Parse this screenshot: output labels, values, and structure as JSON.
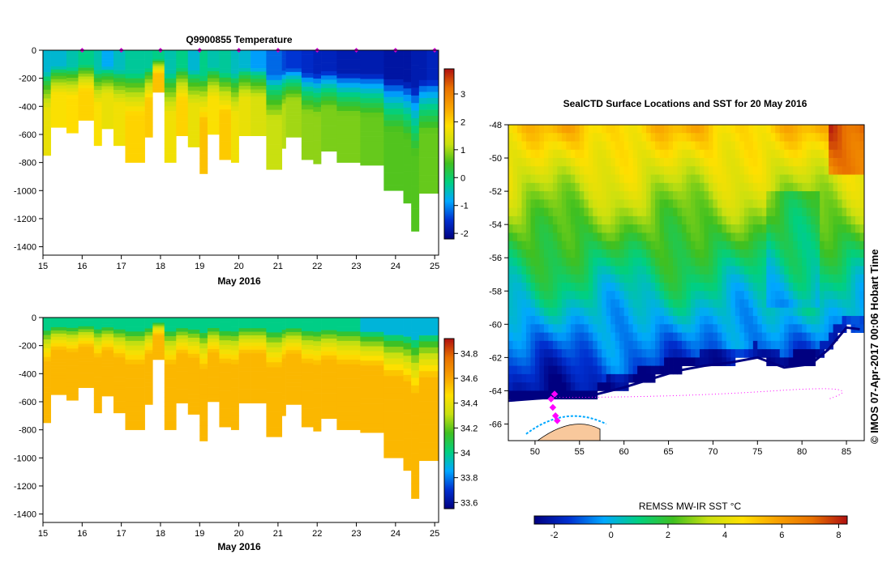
{
  "chart_data": [
    {
      "type": "heatmap",
      "name": "temperature-section",
      "title": "Q9900855  Temperature",
      "xlabel": "May 2016",
      "ylabel": "",
      "x_ticks": [
        15,
        16,
        17,
        18,
        19,
        20,
        21,
        22,
        23,
        24,
        25
      ],
      "xlim": [
        15,
        25.1
      ],
      "y_ticks": [
        0,
        -200,
        -400,
        -600,
        -800,
        -1000,
        -1200,
        -1400
      ],
      "ylim": [
        -1460,
        0
      ],
      "colorbar_ticks": [
        3,
        2,
        1,
        0,
        -1,
        -2
      ],
      "colorbar_range": [
        -2.2,
        3.9
      ],
      "profile_markers_day": [
        16,
        17,
        18,
        19,
        20,
        21,
        22,
        23,
        24,
        25
      ],
      "profile_columns": [
        {
          "x0": 15.0,
          "x1": 15.2,
          "depth": 750,
          "surface": -0.6,
          "deep": 1.6
        },
        {
          "x0": 15.2,
          "x1": 15.6,
          "depth": 550,
          "surface": -0.6,
          "deep": 1.8
        },
        {
          "x0": 15.6,
          "x1": 15.9,
          "depth": 590,
          "surface": -0.4,
          "deep": 1.9
        },
        {
          "x0": 15.9,
          "x1": 16.3,
          "depth": 500,
          "surface": -0.2,
          "deep": 2.0
        },
        {
          "x0": 16.3,
          "x1": 16.5,
          "depth": 680,
          "surface": -0.4,
          "deep": 1.8
        },
        {
          "x0": 16.5,
          "x1": 16.8,
          "depth": 560,
          "surface": -0.8,
          "deep": 1.6
        },
        {
          "x0": 16.8,
          "x1": 17.1,
          "depth": 680,
          "surface": -0.5,
          "deep": 1.7
        },
        {
          "x0": 17.1,
          "x1": 17.6,
          "depth": 800,
          "surface": -0.3,
          "deep": 2.0
        },
        {
          "x0": 17.6,
          "x1": 17.8,
          "depth": 620,
          "surface": -0.3,
          "deep": 2.1
        },
        {
          "x0": 17.8,
          "x1": 18.1,
          "depth": 300,
          "surface": -0.2,
          "deep": 2.2
        },
        {
          "x0": 18.1,
          "x1": 18.4,
          "depth": 800,
          "surface": -0.4,
          "deep": 1.7
        },
        {
          "x0": 18.4,
          "x1": 18.7,
          "depth": 610,
          "surface": -0.2,
          "deep": 2.0
        },
        {
          "x0": 18.7,
          "x1": 19.0,
          "depth": 690,
          "surface": -0.6,
          "deep": 1.6
        },
        {
          "x0": 19.0,
          "x1": 19.2,
          "depth": 880,
          "surface": -0.2,
          "deep": 2.2
        },
        {
          "x0": 19.2,
          "x1": 19.5,
          "depth": 600,
          "surface": -0.4,
          "deep": 1.8
        },
        {
          "x0": 19.5,
          "x1": 19.8,
          "depth": 780,
          "surface": -0.3,
          "deep": 2.1
        },
        {
          "x0": 19.8,
          "x1": 20.0,
          "depth": 800,
          "surface": -0.5,
          "deep": 1.7
        },
        {
          "x0": 20.0,
          "x1": 20.3,
          "depth": 610,
          "surface": -0.6,
          "deep": 1.6
        },
        {
          "x0": 20.3,
          "x1": 20.7,
          "depth": 610,
          "surface": -0.9,
          "deep": 1.4
        },
        {
          "x0": 20.7,
          "x1": 21.1,
          "depth": 850,
          "surface": -1.2,
          "deep": 1.2
        },
        {
          "x0": 21.1,
          "x1": 21.2,
          "depth": 700,
          "surface": -1.4,
          "deep": 1.1
        },
        {
          "x0": 21.2,
          "x1": 21.6,
          "depth": 620,
          "surface": -1.5,
          "deep": 1.0
        },
        {
          "x0": 21.6,
          "x1": 21.9,
          "depth": 780,
          "surface": -1.6,
          "deep": 0.9
        },
        {
          "x0": 21.9,
          "x1": 22.1,
          "depth": 810,
          "surface": -1.7,
          "deep": 0.9
        },
        {
          "x0": 22.1,
          "x1": 22.5,
          "depth": 720,
          "surface": -1.7,
          "deep": 0.8
        },
        {
          "x0": 22.5,
          "x1": 23.1,
          "depth": 800,
          "surface": -1.8,
          "deep": 0.8
        },
        {
          "x0": 23.1,
          "x1": 23.7,
          "depth": 820,
          "surface": -1.8,
          "deep": 0.7
        },
        {
          "x0": 23.7,
          "x1": 24.2,
          "depth": 1000,
          "surface": -1.9,
          "deep": 0.6
        },
        {
          "x0": 24.2,
          "x1": 24.4,
          "depth": 1090,
          "surface": -1.9,
          "deep": 0.6
        },
        {
          "x0": 24.4,
          "x1": 24.6,
          "depth": 1290,
          "surface": -1.8,
          "deep": 0.6
        },
        {
          "x0": 24.6,
          "x1": 24.8,
          "depth": 1020,
          "surface": -1.8,
          "deep": 0.7
        },
        {
          "x0": 24.8,
          "x1": 25.1,
          "depth": 1020,
          "surface": -1.7,
          "deep": 0.7
        }
      ]
    },
    {
      "type": "heatmap",
      "name": "salinity-section",
      "title": "",
      "xlabel": "May 2016",
      "ylabel": "",
      "x_ticks": [
        15,
        16,
        17,
        18,
        19,
        20,
        21,
        22,
        23,
        24,
        25
      ],
      "xlim": [
        15,
        25.1
      ],
      "y_ticks": [
        0,
        -200,
        -400,
        -600,
        -800,
        -1000,
        -1200,
        -1400
      ],
      "ylim": [
        -1460,
        0
      ],
      "colorbar_ticks": [
        34.8,
        34.6,
        34.4,
        34.2,
        34,
        33.8,
        33.6
      ],
      "colorbar_range": [
        33.55,
        34.92
      ],
      "surface_value": 34.0,
      "deep_value": 34.56,
      "colorbar_palette": [
        "#000080",
        "#0030d0",
        "#00a8ff",
        "#00d080",
        "#40c020",
        "#c8e010",
        "#ffe000",
        "#f8a000",
        "#e87000",
        "#b01010"
      ]
    },
    {
      "type": "heatmap",
      "name": "sst-map",
      "title": "SealCTD Surface Locations and SST for 20 May 2016",
      "xlabel": "",
      "ylabel": "",
      "x_ticks": [
        50,
        55,
        60,
        65,
        70,
        75,
        80,
        85
      ],
      "xlim": [
        47,
        87
      ],
      "y_ticks": [
        -48,
        -50,
        -52,
        -54,
        -56,
        -58,
        -60,
        -62,
        -64,
        -66
      ],
      "ylim": [
        -67,
        -48
      ],
      "colorbar_title": "REMSS MW-IR SST °C",
      "colorbar_ticks": [
        -2,
        0,
        2,
        4,
        6,
        8
      ],
      "colorbar_range": [
        -2.7,
        8.3
      ],
      "seal_locations": [
        {
          "lon": 51.8,
          "lat": -64.5
        },
        {
          "lon": 52.0,
          "lat": -65.0
        },
        {
          "lon": 52.3,
          "lat": -65.5
        },
        {
          "lon": 52.5,
          "lat": -65.8
        },
        {
          "lon": 52.2,
          "lat": -64.2
        }
      ],
      "ice_edge": [
        {
          "lon": 57.0,
          "lat": -64.2
        },
        {
          "lon": 60.0,
          "lat": -63.8
        },
        {
          "lon": 63.0,
          "lat": -63.3
        },
        {
          "lon": 66.0,
          "lat": -62.8
        },
        {
          "lon": 69.0,
          "lat": -62.5
        },
        {
          "lon": 72.0,
          "lat": -62.3
        },
        {
          "lon": 75.0,
          "lat": -62.0
        },
        {
          "lon": 78.0,
          "lat": -62.6
        },
        {
          "lon": 81.0,
          "lat": -62.4
        },
        {
          "lon": 83.0,
          "lat": -61.5
        },
        {
          "lon": 85.0,
          "lat": -60.2
        },
        {
          "lon": 86.5,
          "lat": -60.3
        }
      ]
    }
  ],
  "credit": "© IMOS 07-Apr-2017 00:06 Hobart Time",
  "colors": {
    "profile_marker": "#d000d0",
    "land": "#f8c89c",
    "seal_track": "#ff00ff"
  }
}
